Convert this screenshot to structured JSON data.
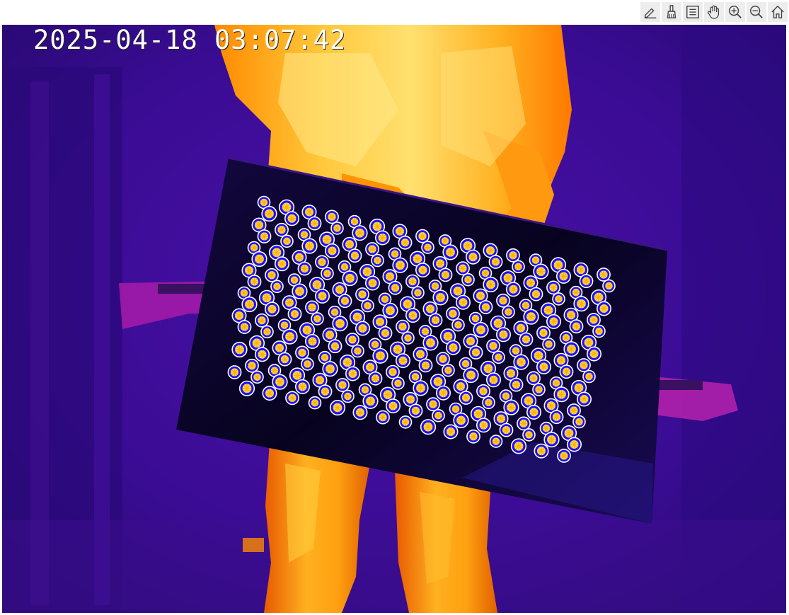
{
  "overlay": {
    "timestamp": "2025-04-18 03:07:42"
  },
  "toolbar": {
    "buttons": [
      {
        "name": "annotate-button",
        "icon": "pencil-icon"
      },
      {
        "name": "brush-button",
        "icon": "brush-icon"
      },
      {
        "name": "legend-button",
        "icon": "legend-icon"
      },
      {
        "name": "pan-button",
        "icon": "hand-icon"
      },
      {
        "name": "zoom-in-button",
        "icon": "zoom-in-icon"
      },
      {
        "name": "zoom-out-button",
        "icon": "zoom-out-icon"
      },
      {
        "name": "home-button",
        "icon": "home-icon"
      }
    ]
  },
  "markers": {
    "ring_color": "#ffffff",
    "fill_color": "#1a10ff",
    "spoke_color": "#ffb000"
  },
  "colors": {
    "background": "#2a0a7c",
    "board": "#0a0430",
    "hot": "#ffd84a",
    "warm": "#ff9a00"
  }
}
